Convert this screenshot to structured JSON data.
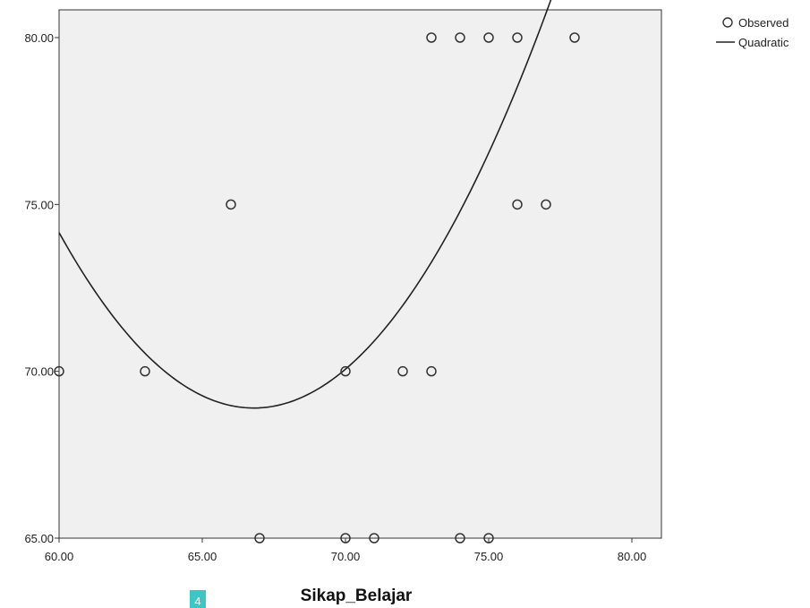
{
  "chart_data": {
    "type": "scatter",
    "xlabel": "Sikap_Belajar",
    "ylabel": "",
    "xlim": [
      60,
      81
    ],
    "ylim": [
      65,
      80.8
    ],
    "x_ticks": [
      "60.00",
      "65.00",
      "70.00",
      "75.00",
      "80.00"
    ],
    "y_ticks": [
      "65.00",
      "70.00",
      "75.00",
      "80.00"
    ],
    "grid": false,
    "legend_position": "top-right",
    "series": [
      {
        "name": "Observed",
        "mode": "markers",
        "marker": "open-circle",
        "color": "#333333",
        "points": [
          [
            60,
            70
          ],
          [
            63,
            70
          ],
          [
            66,
            75
          ],
          [
            67,
            65
          ],
          [
            70,
            70
          ],
          [
            70,
            65
          ],
          [
            71,
            65
          ],
          [
            72,
            70
          ],
          [
            73,
            70
          ],
          [
            73,
            80
          ],
          [
            74,
            80
          ],
          [
            74,
            65
          ],
          [
            75,
            80
          ],
          [
            75,
            65
          ],
          [
            76,
            80
          ],
          [
            76,
            75
          ],
          [
            77,
            75
          ],
          [
            78,
            80
          ]
        ]
      },
      {
        "name": "Quadratic",
        "mode": "line",
        "color": "#222222",
        "x_range": [
          60,
          79.1
        ],
        "coefficients": {
          "a": 0.1137,
          "h": 66.8,
          "k": 68.9
        }
      }
    ],
    "plot_background": "#f0f0f0"
  },
  "badge": {
    "text": "4",
    "color": "#3ec6c4"
  }
}
